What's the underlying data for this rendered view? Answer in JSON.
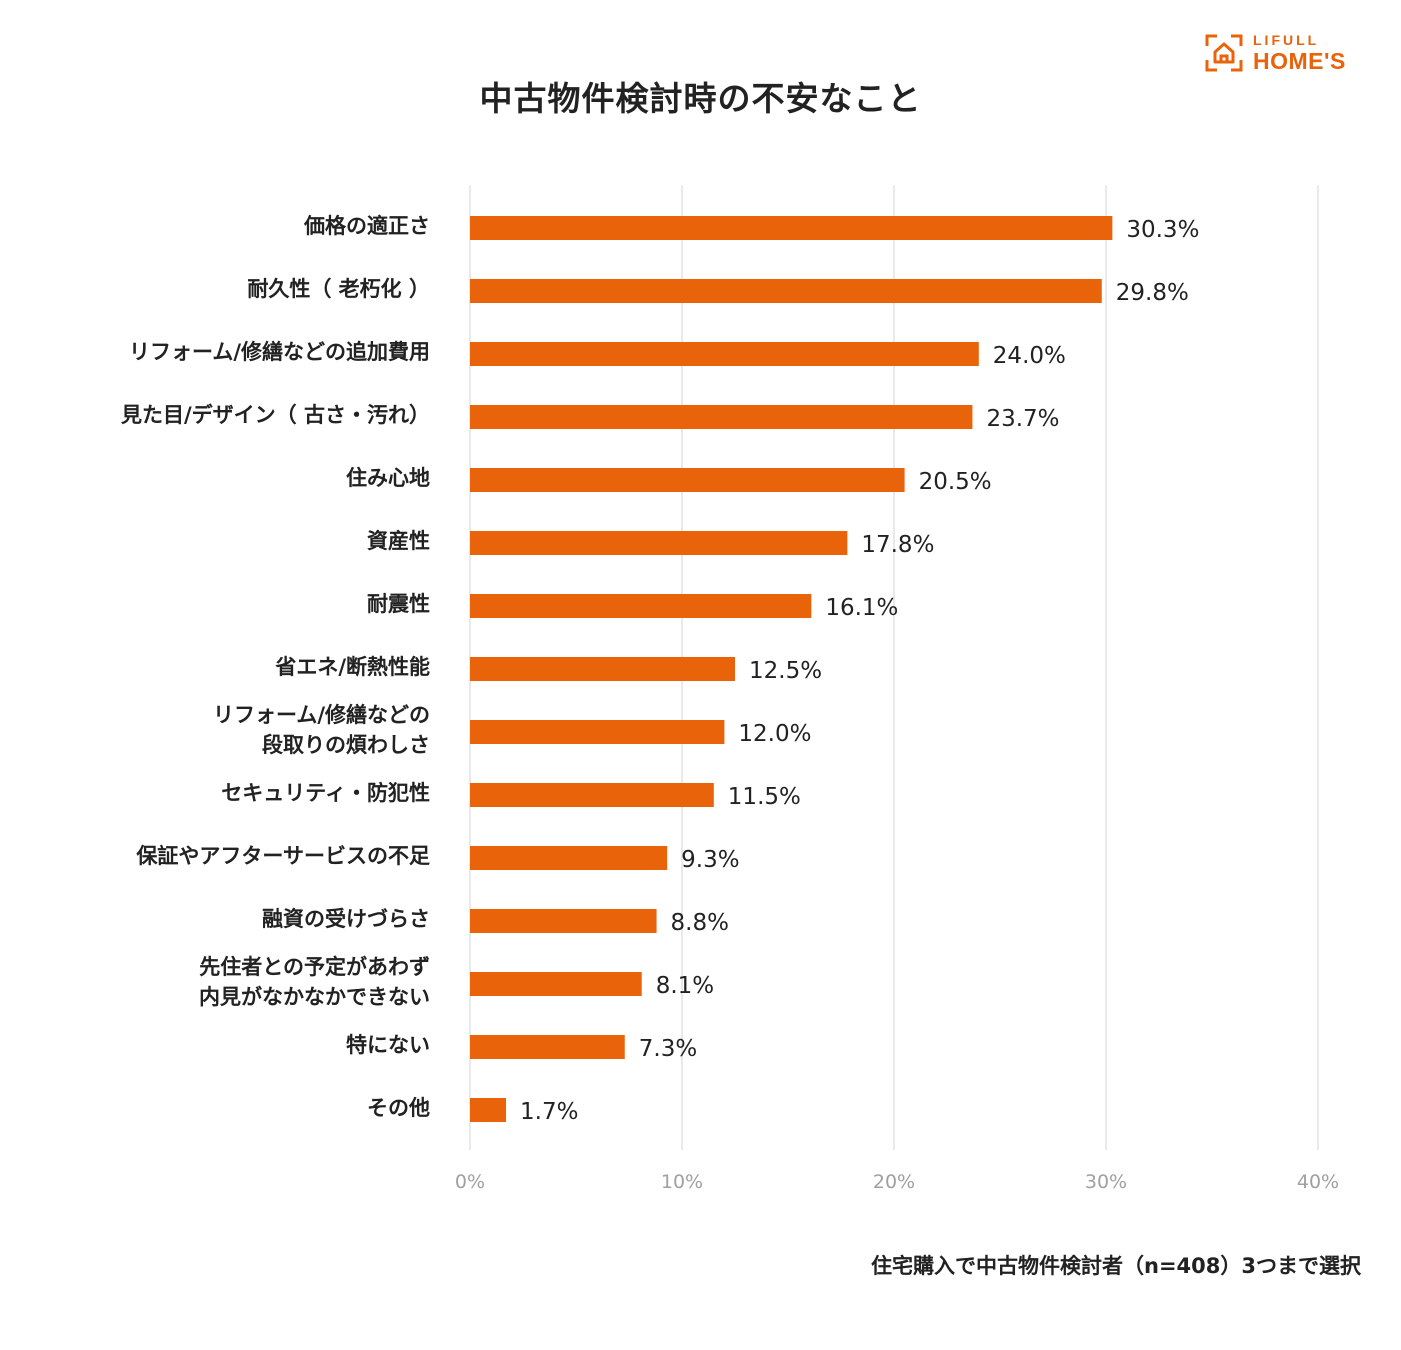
{
  "header": {
    "title": "中古物件検討時の不安なこと",
    "logo_line1": "LIFULL",
    "logo_line2": "HOME'S"
  },
  "footnote": "住宅購入で中古物件検討者（n=408）3つまで選択",
  "colors": {
    "bar": "#E8630A",
    "grid": "#E2E2E2",
    "axis_text": "#A0A0A0",
    "text": "#222222"
  },
  "chart_data": {
    "type": "bar",
    "orientation": "horizontal",
    "title": "中古物件検討時の不安なこと",
    "categories": [
      [
        "価格の適正さ"
      ],
      [
        "耐久性（ 老朽化 ）"
      ],
      [
        "リフォーム/修繕などの追加費用"
      ],
      [
        "見た目/デザイン（ 古さ・汚れ）"
      ],
      [
        "住み心地"
      ],
      [
        "資産性"
      ],
      [
        "耐震性"
      ],
      [
        "省エネ/断熱性能"
      ],
      [
        "リフォーム/修繕などの",
        "段取りの煩わしさ"
      ],
      [
        "セキュリティ・防犯性"
      ],
      [
        "保証やアフターサービスの不足"
      ],
      [
        "融資の受けづらさ"
      ],
      [
        "先住者との予定があわず",
        "内見がなかなかできない"
      ],
      [
        "特にない"
      ],
      [
        "その他"
      ]
    ],
    "values": [
      30.3,
      29.8,
      24.0,
      23.7,
      20.5,
      17.8,
      16.1,
      12.5,
      12.0,
      11.5,
      9.3,
      8.8,
      8.1,
      7.3,
      1.7
    ],
    "value_labels": [
      "30.3%",
      "29.8%",
      "24.0%",
      "23.7%",
      "20.5%",
      "17.8%",
      "16.1%",
      "12.5%",
      "12.0%",
      "11.5%",
      "9.3%",
      "8.8%",
      "8.1%",
      "7.3%",
      "1.7%"
    ],
    "xlim": [
      0,
      40
    ],
    "xticks": [
      0,
      10,
      20,
      30,
      40
    ],
    "xtick_labels": [
      "0%",
      "10%",
      "20%",
      "30%",
      "40%"
    ],
    "grid": true,
    "xlabel": "",
    "ylabel": ""
  }
}
